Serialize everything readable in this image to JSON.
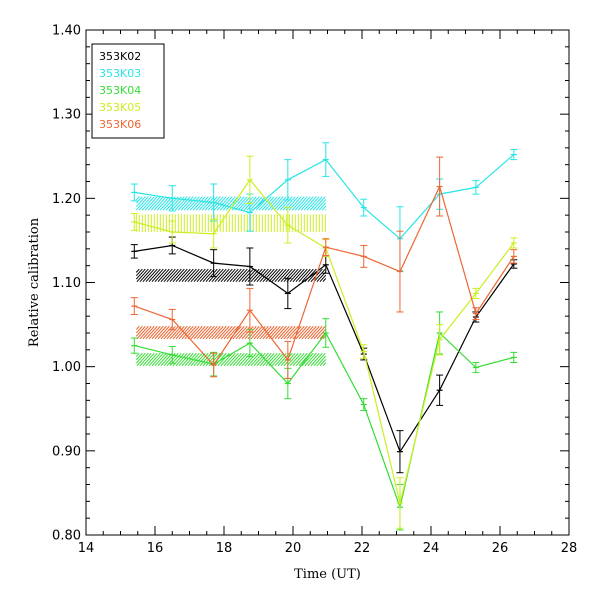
{
  "chart_data": {
    "type": "line",
    "title": "",
    "xlabel": "Time (UT)",
    "ylabel": "Relative calibration",
    "xlim": [
      14,
      28
    ],
    "ylim": [
      0.8,
      1.4
    ],
    "xticks": [
      "14",
      "16",
      "18",
      "20",
      "22",
      "24",
      "26",
      "28"
    ],
    "yticks": [
      "0.80",
      "0.90",
      "1.00",
      "1.10",
      "1.20",
      "1.30",
      "1.40"
    ],
    "legend_position": "top-left",
    "x": [
      15.4,
      16.5,
      17.7,
      18.75,
      19.85,
      20.95,
      22.05,
      23.1,
      24.25,
      25.3,
      26.4
    ],
    "series": [
      {
        "name": "353K02",
        "color": "#000000",
        "values": [
          1.137,
          1.144,
          1.123,
          1.119,
          1.087,
          1.121,
          1.015,
          0.899,
          0.972,
          1.059,
          1.122
        ],
        "errors": [
          0.008,
          0.01,
          0.016,
          0.022,
          0.018,
          0.01,
          0.007,
          0.025,
          0.018,
          0.006,
          0.005
        ],
        "band": [
          1.101,
          1.116
        ]
      },
      {
        "name": "353K03",
        "color": "#26e5e5",
        "values": [
          1.207,
          1.2,
          1.195,
          1.183,
          1.222,
          1.246,
          1.189,
          1.152,
          1.205,
          1.213,
          1.252
        ],
        "errors": [
          0.01,
          0.015,
          0.022,
          0.022,
          0.024,
          0.02,
          0.01,
          0.038,
          0.018,
          0.008,
          0.006
        ],
        "band": [
          1.186,
          1.202
        ]
      },
      {
        "name": "353K04",
        "color": "#33dd33",
        "values": [
          1.025,
          1.014,
          1.003,
          1.028,
          0.98,
          1.04,
          0.955,
          0.833,
          1.04,
          0.999,
          1.011
        ],
        "errors": [
          0.009,
          0.01,
          0.014,
          0.016,
          0.018,
          0.017,
          0.007,
          0.027,
          0.025,
          0.006,
          0.006
        ],
        "band": [
          1.001,
          1.016
        ]
      },
      {
        "name": "353K05",
        "color": "#ccee22",
        "values": [
          1.172,
          1.16,
          1.158,
          1.222,
          1.168,
          1.141,
          1.018,
          0.838,
          1.032,
          1.087,
          1.147
        ],
        "errors": [
          0.01,
          0.013,
          0.017,
          0.028,
          0.021,
          0.01,
          0.008,
          0.03,
          0.018,
          0.006,
          0.006
        ],
        "band": [
          1.16,
          1.181
        ]
      },
      {
        "name": "353K06",
        "color": "#ee6633",
        "values": [
          1.072,
          1.056,
          1.002,
          1.067,
          1.008,
          1.142,
          1.131,
          1.113,
          1.214,
          1.063,
          1.131
        ],
        "errors": [
          0.01,
          0.012,
          0.014,
          0.026,
          0.022,
          0.01,
          0.013,
          0.048,
          0.035,
          0.007,
          0.008
        ],
        "band": [
          1.033,
          1.048
        ]
      }
    ]
  }
}
